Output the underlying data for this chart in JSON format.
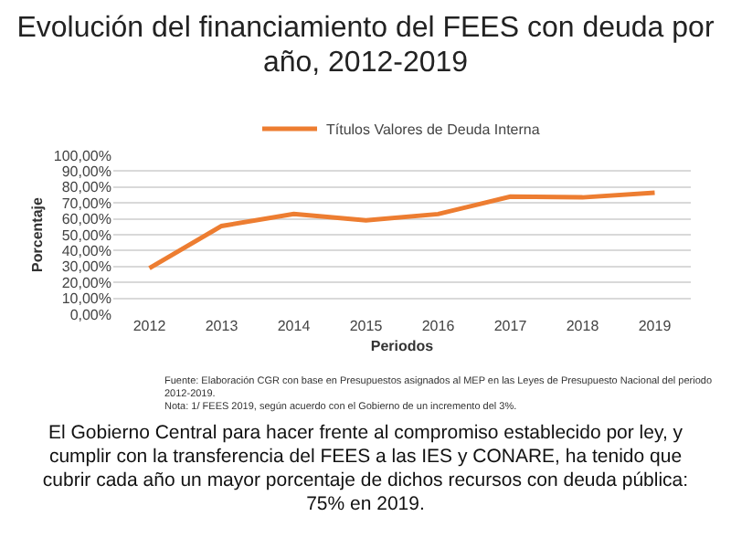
{
  "chart_data": {
    "type": "line",
    "title": "Evolución del financiamiento del FEES con deuda por año, 2012-2019",
    "xlabel": "Periodos",
    "ylabel": "Porcentaje",
    "categories": [
      "2012",
      "2013",
      "2014",
      "2015",
      "2016",
      "2017",
      "2018",
      "2019"
    ],
    "series": [
      {
        "name": "Títulos Valores de Deuda Interna",
        "color": "#ed7d31",
        "values": [
          29,
          55.5,
          63,
          59,
          63,
          74,
          73.5,
          76.5
        ]
      }
    ],
    "ylim": [
      0,
      100
    ],
    "yticks": [
      {
        "value": 0,
        "label": "0,00%"
      },
      {
        "value": 10,
        "label": "10,00%"
      },
      {
        "value": 20,
        "label": "20,00%"
      },
      {
        "value": 30,
        "label": "30,00%"
      },
      {
        "value": 40,
        "label": "40,00%"
      },
      {
        "value": 50,
        "label": "50,00%"
      },
      {
        "value": 60,
        "label": "60,00%"
      },
      {
        "value": 70,
        "label": "70,00%"
      },
      {
        "value": 80,
        "label": "80,00%"
      },
      {
        "value": 90,
        "label": "90,00%"
      },
      {
        "value": 100,
        "label": "100,00%"
      }
    ],
    "grid": "y",
    "legend": "top",
    "marker": "none",
    "line_style": "solid",
    "annotations": [
      "Fuente: Elaboración CGR con base en Presupuestos asignados al MEP en las Leyes de Presupuesto Nacional del periodo 2012-2019.",
      "Nota: 1/ FEES 2019, según acuerdo con el Gobierno de un incremento del 3%.",
      "El Gobierno Central para hacer frente al compromiso establecido por ley, y cumplir con la transferencia del FEES a las IES y CONARE, ha tenido que cubrir cada año un mayor porcentaje de dichos recursos con deuda pública: 75% en 2019."
    ]
  }
}
